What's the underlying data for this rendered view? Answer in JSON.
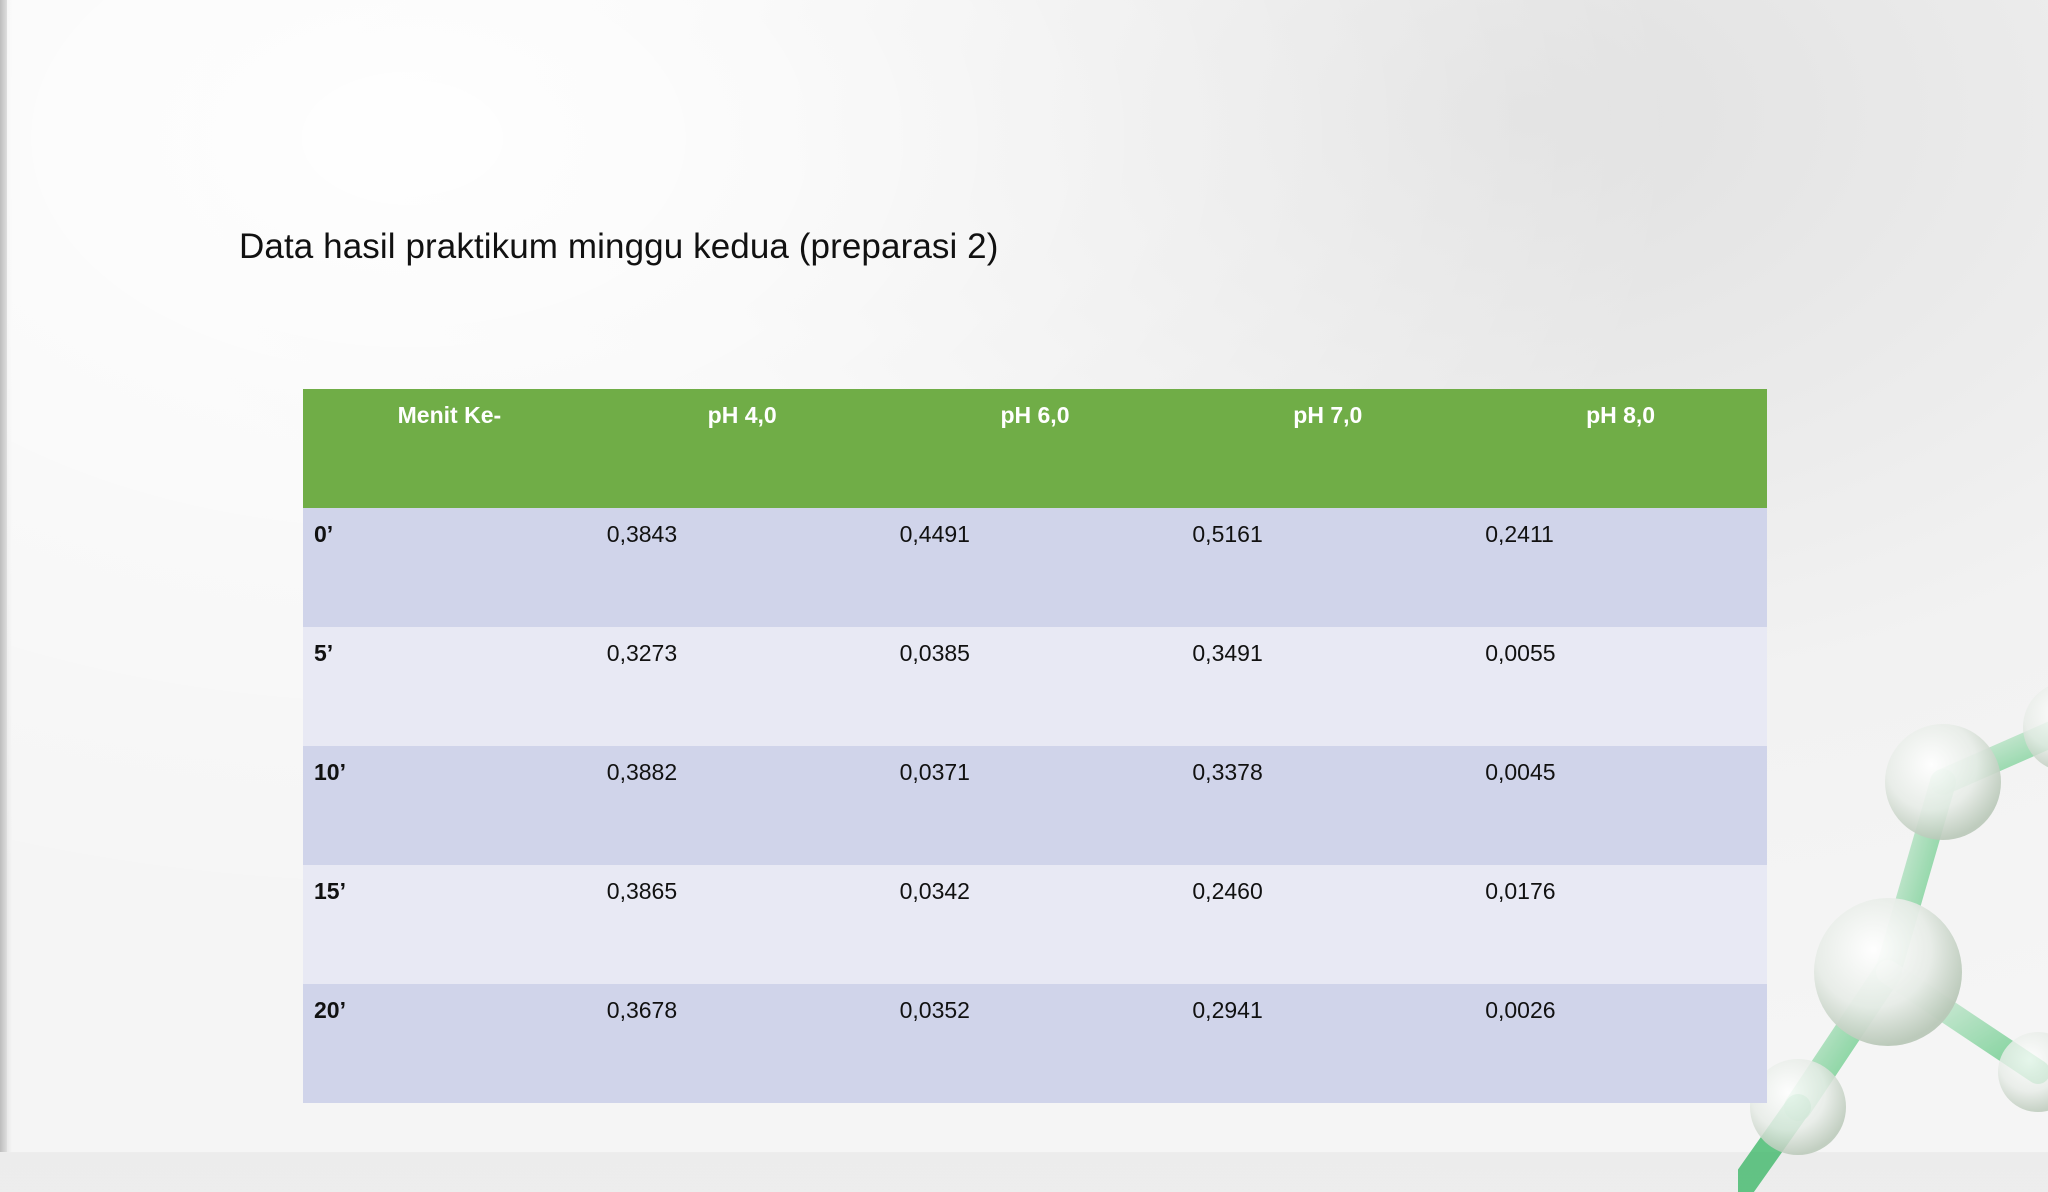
{
  "slide": {
    "title": "Data hasil praktikum minggu kedua (preparasi 2)"
  },
  "table": {
    "headers": [
      "Menit Ke-",
      "pH 4,0",
      "pH 6,0",
      "pH 7,0",
      "pH 8,0"
    ],
    "rows": [
      [
        "0’",
        "0,3843",
        "0,4491",
        "0,5161",
        "0,2411"
      ],
      [
        "5’",
        "0,3273",
        "0,0385",
        "0,3491",
        "0,0055"
      ],
      [
        "10’",
        "0,3882",
        "0,0371",
        "0,3378",
        "0,0045"
      ],
      [
        "15’",
        "0,3865",
        "0,0342",
        "0,2460",
        "0,0176"
      ],
      [
        "20’",
        "0,3678",
        "0,0352",
        "0,2941",
        "0,0026"
      ]
    ]
  },
  "colors": {
    "header": "#70ad47",
    "row_odd": "#d0d4ea",
    "row_even": "#e8e9f4"
  }
}
